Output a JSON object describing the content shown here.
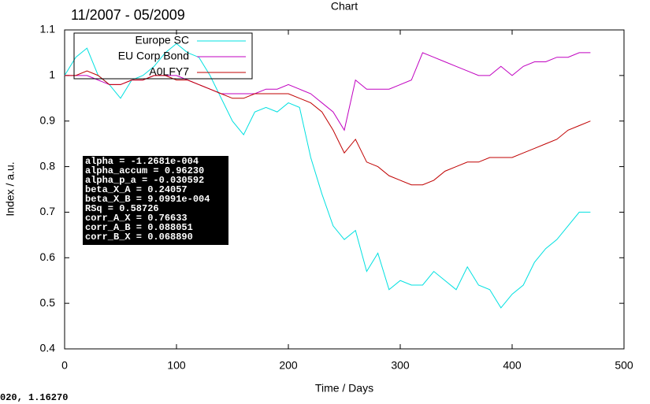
{
  "chart_data": {
    "type": "line",
    "title": "Chart",
    "subtitle": "11/2007 - 05/2009",
    "x_label": "Time / Days",
    "y_label": "Index / a.u.",
    "x": [
      0,
      10,
      20,
      30,
      40,
      50,
      60,
      70,
      80,
      90,
      100,
      110,
      120,
      130,
      140,
      150,
      160,
      170,
      180,
      190,
      200,
      210,
      220,
      230,
      240,
      250,
      260,
      270,
      280,
      290,
      300,
      310,
      320,
      330,
      340,
      350,
      360,
      370,
      380,
      390,
      400,
      410,
      420,
      430,
      440,
      450,
      460,
      470
    ],
    "series": [
      {
        "name": "Europe SC",
        "color": "#00e0e0",
        "values": [
          1.0,
          1.04,
          1.06,
          1.0,
          0.98,
          0.95,
          0.99,
          1.0,
          1.02,
          1.05,
          1.07,
          1.05,
          1.04,
          1.0,
          0.95,
          0.9,
          0.87,
          0.92,
          0.93,
          0.92,
          0.94,
          0.93,
          0.82,
          0.74,
          0.67,
          0.64,
          0.66,
          0.57,
          0.61,
          0.53,
          0.55,
          0.54,
          0.54,
          0.57,
          0.55,
          0.53,
          0.58,
          0.54,
          0.53,
          0.49,
          0.52,
          0.54,
          0.59,
          0.62,
          0.64,
          0.67,
          0.7,
          0.7
        ]
      },
      {
        "name": "EU Corp Bond",
        "color": "#c000c0",
        "values": [
          1.0,
          1.0,
          1.0,
          0.99,
          0.98,
          0.98,
          0.99,
          0.99,
          1.0,
          1.0,
          1.0,
          0.99,
          0.98,
          0.97,
          0.96,
          0.96,
          0.96,
          0.96,
          0.97,
          0.97,
          0.98,
          0.97,
          0.96,
          0.94,
          0.92,
          0.88,
          0.99,
          0.97,
          0.97,
          0.97,
          0.98,
          0.99,
          1.05,
          1.04,
          1.03,
          1.02,
          1.01,
          1.0,
          1.0,
          1.02,
          1.0,
          1.02,
          1.03,
          1.03,
          1.04,
          1.04,
          1.05,
          1.05
        ]
      },
      {
        "name": "A0LFY7",
        "color": "#c00000",
        "values": [
          1.0,
          1.0,
          1.01,
          1.0,
          0.98,
          0.98,
          0.99,
          0.99,
          1.0,
          1.0,
          0.99,
          0.99,
          0.98,
          0.97,
          0.96,
          0.95,
          0.95,
          0.96,
          0.96,
          0.96,
          0.96,
          0.95,
          0.94,
          0.92,
          0.88,
          0.83,
          0.86,
          0.81,
          0.8,
          0.78,
          0.77,
          0.76,
          0.76,
          0.77,
          0.79,
          0.8,
          0.81,
          0.81,
          0.82,
          0.82,
          0.82,
          0.83,
          0.84,
          0.85,
          0.86,
          0.88,
          0.89,
          0.9
        ]
      }
    ],
    "xlim": [
      0,
      500
    ],
    "xticks": [
      0,
      100,
      200,
      300,
      400,
      500
    ],
    "ylim": [
      0.4,
      1.1
    ],
    "yticks": [
      0.4,
      0.5,
      0.6,
      0.7,
      0.8,
      0.9,
      1,
      1.1
    ],
    "stats_box": [
      "alpha = -1.2681e-004",
      "alpha_accum =  0.96230",
      "alpha_p_a = -0.030592",
      "beta_X_A =  0.24057",
      "beta_X_B = 9.0991e-004",
      "RSq =  0.58726",
      "corr_A_X =  0.76633",
      "corr_A_B =  0.088051",
      "corr_B_X =  0.068890"
    ],
    "cursor_readout": "020, 1.16270"
  }
}
